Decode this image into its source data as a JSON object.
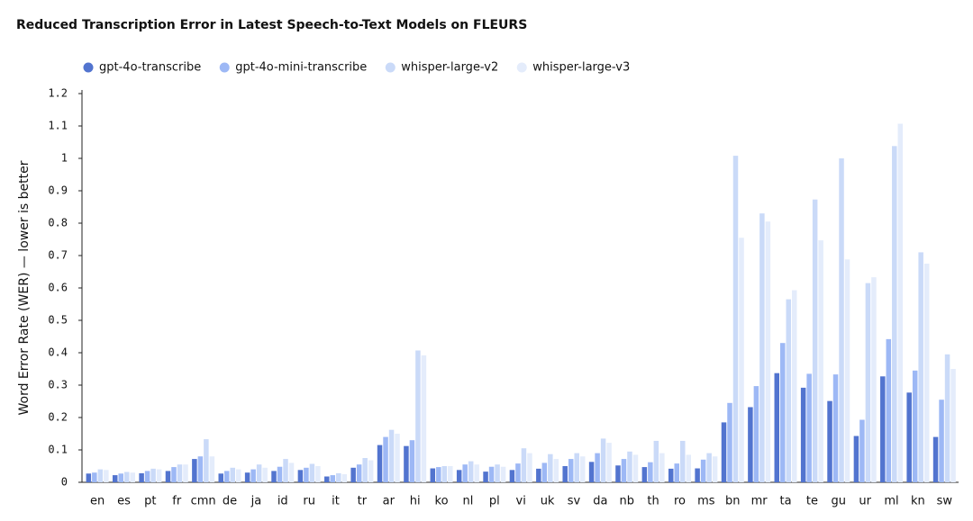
{
  "chart_data": {
    "type": "bar",
    "title": "Reduced Transcription Error in Latest Speech-to-Text Models on FLEURS",
    "y_label": "Word Error Rate (WER) — lower is better",
    "categories": [
      "en",
      "es",
      "pt",
      "fr",
      "cmn",
      "de",
      "ja",
      "id",
      "ru",
      "it",
      "tr",
      "ar",
      "hi",
      "ko",
      "nl",
      "pl",
      "vi",
      "uk",
      "sv",
      "da",
      "nb",
      "th",
      "ro",
      "ms",
      "bn",
      "mr",
      "ta",
      "te",
      "gu",
      "ur",
      "ml",
      "kn",
      "sw"
    ],
    "series": [
      {
        "name": "gpt-4o-transcribe",
        "color": "#5274cf",
        "values": [
          0.027,
          0.022,
          0.028,
          0.035,
          0.072,
          0.027,
          0.03,
          0.035,
          0.038,
          0.018,
          0.045,
          0.115,
          0.112,
          0.043,
          0.038,
          0.033,
          0.038,
          0.042,
          0.05,
          0.063,
          0.052,
          0.047,
          0.042,
          0.043,
          0.185,
          0.232,
          0.337,
          0.292,
          0.251,
          0.143,
          0.327,
          0.277,
          0.14
        ]
      },
      {
        "name": "gpt-4o-mini-transcribe",
        "color": "#9db8f5",
        "values": [
          0.03,
          0.027,
          0.035,
          0.047,
          0.08,
          0.035,
          0.04,
          0.048,
          0.045,
          0.022,
          0.055,
          0.14,
          0.13,
          0.047,
          0.055,
          0.048,
          0.058,
          0.06,
          0.072,
          0.09,
          0.072,
          0.062,
          0.058,
          0.07,
          0.245,
          0.297,
          0.43,
          0.335,
          0.333,
          0.193,
          0.442,
          0.345,
          0.255
        ]
      },
      {
        "name": "whisper-large-v2",
        "color": "#cadaf8",
        "values": [
          0.04,
          0.032,
          0.042,
          0.055,
          0.133,
          0.045,
          0.055,
          0.072,
          0.057,
          0.028,
          0.075,
          0.162,
          0.407,
          0.05,
          0.065,
          0.055,
          0.105,
          0.087,
          0.09,
          0.135,
          0.095,
          0.128,
          0.128,
          0.09,
          1.008,
          0.83,
          0.565,
          0.873,
          1.0,
          0.615,
          1.038,
          0.71,
          0.395
        ]
      },
      {
        "name": "whisper-large-v3",
        "color": "#e4ecfb",
        "values": [
          0.038,
          0.03,
          0.04,
          0.055,
          0.08,
          0.04,
          0.045,
          0.06,
          0.05,
          0.025,
          0.068,
          0.15,
          0.392,
          0.05,
          0.055,
          0.048,
          0.09,
          0.072,
          0.08,
          0.122,
          0.085,
          0.09,
          0.085,
          0.08,
          0.755,
          0.805,
          0.593,
          0.747,
          0.688,
          0.633,
          1.107,
          0.675,
          0.35
        ]
      }
    ],
    "ylim": [
      0,
      1.2
    ],
    "yticks": [
      0,
      0.1,
      0.2,
      0.3,
      0.4,
      0.5,
      0.6,
      0.7,
      0.8,
      0.9,
      1,
      1.1,
      1.2
    ],
    "grid": false
  }
}
